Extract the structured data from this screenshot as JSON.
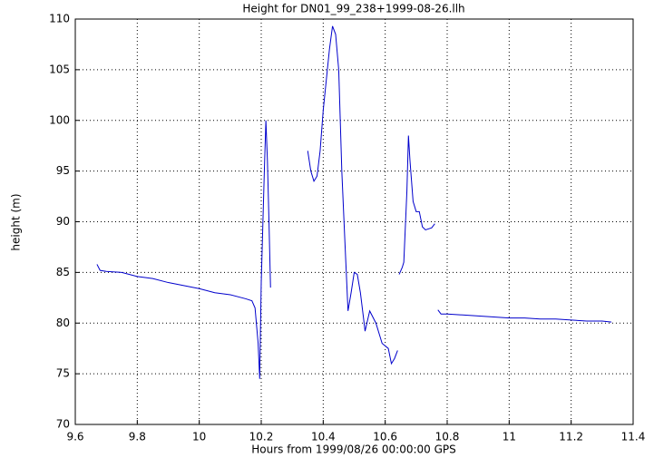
{
  "chart_data": {
    "type": "line",
    "title": "Height for DN01_99_238+1999-08-26.llh",
    "x_label": "Hours from 1999/08/26 00:00:00 GPS",
    "y_label": "height (m)",
    "color": "#0000cc",
    "grid": true,
    "x": [
      9.67,
      9.68,
      9.7,
      9.75,
      9.8,
      9.85,
      9.9,
      9.95,
      10.0,
      10.05,
      10.1,
      10.15,
      10.17,
      10.18,
      10.19,
      10.195,
      10.2,
      10.21,
      10.215,
      10.22,
      10.225,
      10.23,
      10.3,
      10.35,
      10.36,
      10.37,
      10.38,
      10.39,
      10.4,
      10.41,
      10.42,
      10.43,
      10.44,
      10.45,
      10.46,
      10.47,
      10.48,
      10.49,
      10.5,
      10.51,
      10.52,
      10.53,
      10.535,
      10.55,
      10.57,
      10.59,
      10.61,
      10.62,
      10.63,
      10.64,
      10.642,
      10.645,
      10.655,
      10.66,
      10.67,
      10.675,
      10.68,
      10.69,
      10.7,
      10.71,
      10.72,
      10.73,
      10.75,
      10.76,
      10.765,
      10.77,
      10.78,
      10.8,
      10.85,
      10.9,
      10.95,
      11.0,
      11.05,
      11.1,
      11.15,
      11.2,
      11.25,
      11.3,
      11.33
    ],
    "values": [
      85.8,
      85.2,
      85.1,
      85.0,
      84.6,
      84.4,
      84.0,
      83.7,
      83.4,
      83.0,
      82.8,
      82.4,
      82.2,
      81.5,
      78,
      74.5,
      84,
      95,
      100,
      96,
      90,
      83.5,
      null,
      97,
      95,
      94,
      94.5,
      97,
      101,
      104,
      107,
      109.3,
      108.5,
      105,
      95,
      88,
      81.2,
      83,
      85,
      84.8,
      83,
      80.5,
      79.2,
      81.2,
      80,
      78,
      77.5,
      76,
      76.5,
      77.3,
      null,
      84.8,
      85.5,
      86,
      93,
      98.5,
      96,
      92,
      91,
      91,
      89.5,
      89.2,
      89.4,
      89.8,
      null,
      81.3,
      80.9,
      80.9,
      80.8,
      80.7,
      80.6,
      80.5,
      80.5,
      80.4,
      80.4,
      80.3,
      80.2,
      80.2,
      80.1
    ],
    "xlim": [
      9.6,
      11.4
    ],
    "xticks": [
      9.6,
      9.8,
      10,
      10.2,
      10.4,
      10.6,
      10.8,
      11,
      11.2,
      11.4
    ],
    "ylim": [
      70,
      110
    ],
    "yticks": [
      70,
      75,
      80,
      85,
      90,
      95,
      100,
      105,
      110
    ]
  }
}
